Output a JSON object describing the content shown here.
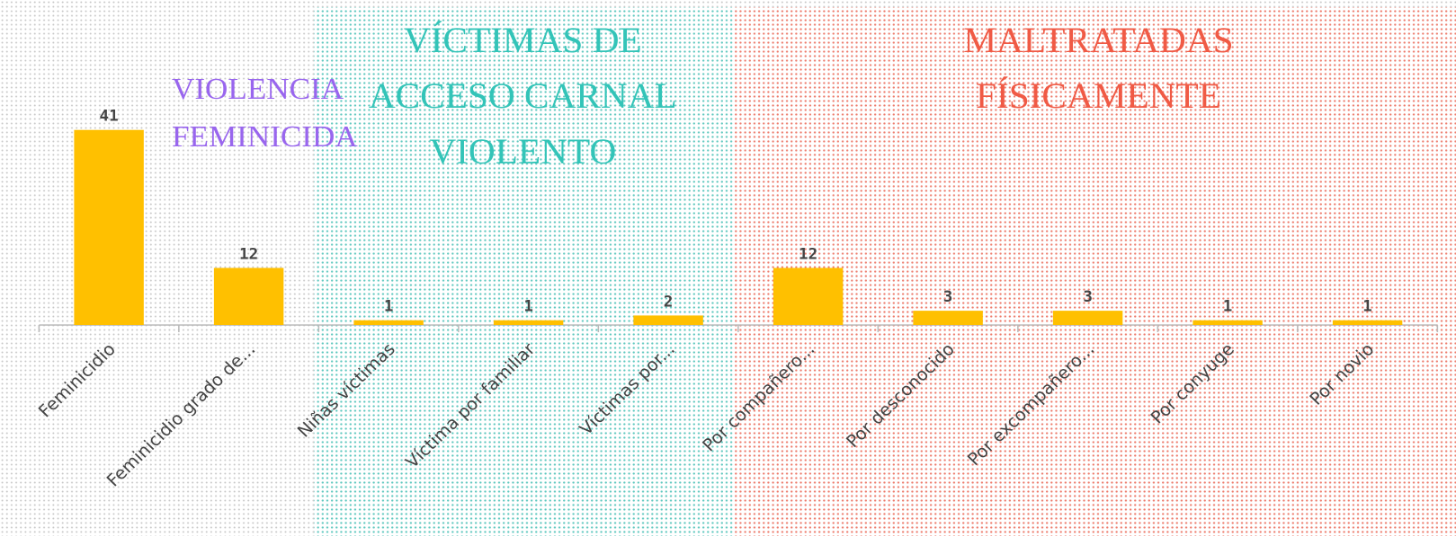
{
  "chart_data": {
    "type": "bar",
    "categories": [
      "Feminicidio",
      "Feminicidio grado de...",
      "Niñas víctimas",
      "Víctima por familiar",
      "Víctimas por...",
      "Por compañero...",
      "Por desconocido",
      "Por excompañero...",
      "Por conyuge",
      "Por novio"
    ],
    "values": [
      41,
      12,
      1,
      1,
      2,
      12,
      3,
      3,
      1,
      1
    ],
    "color": "#ffc000",
    "annotations": [
      {
        "lines": [
          "VIOLENCIA",
          "FEMINICIDA"
        ],
        "color": "#9966ee"
      },
      {
        "lines": [
          "VÍCTIMAS DE",
          "ACCESO CARNAL",
          "VIOLENTO"
        ],
        "color": "#33c4b8"
      },
      {
        "lines": [
          "MALTRATADAS",
          "FÍSICAMENTE"
        ],
        "color": "#f05a45"
      }
    ]
  }
}
